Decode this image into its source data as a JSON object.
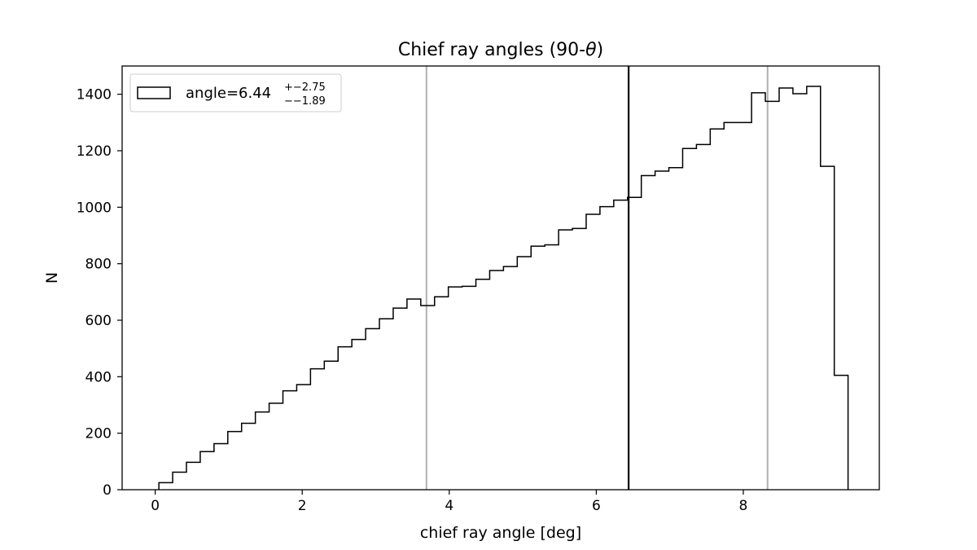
{
  "chart_data": {
    "type": "histogram",
    "title_text": "Chief ray angles (90-",
    "title_symbol": "θ",
    "title_close": ")",
    "xlabel": "chief ray angle [deg]",
    "ylabel": "N",
    "xlim": [
      -0.45,
      9.85
    ],
    "ylim": [
      0,
      1500
    ],
    "xticks": [
      0,
      2,
      4,
      6,
      8
    ],
    "yticks": [
      0,
      200,
      400,
      600,
      800,
      1000,
      1200,
      1400
    ],
    "bin_start": 0.05,
    "bin_width": 0.1875,
    "counts": [
      25,
      62,
      97,
      135,
      163,
      206,
      235,
      275,
      306,
      350,
      372,
      428,
      455,
      506,
      532,
      570,
      605,
      643,
      675,
      652,
      683,
      718,
      720,
      745,
      776,
      790,
      825,
      862,
      867,
      920,
      925,
      975,
      1002,
      1025,
      1035,
      1112,
      1128,
      1140,
      1208,
      1222,
      1277,
      1300,
      1300,
      1405,
      1375,
      1422,
      1402,
      1428,
      1145,
      405
    ],
    "median_line": 6.44,
    "percentile_lines": [
      3.69,
      8.33
    ],
    "legend": {
      "label_main": "angle=6.44",
      "label_sup": "+−2.75",
      "label_sub": "−−1.89",
      "placement": "upper-left"
    },
    "colors": {
      "histogram": "#000000",
      "median": "#000000",
      "percentile": "#b0b0b0"
    }
  }
}
